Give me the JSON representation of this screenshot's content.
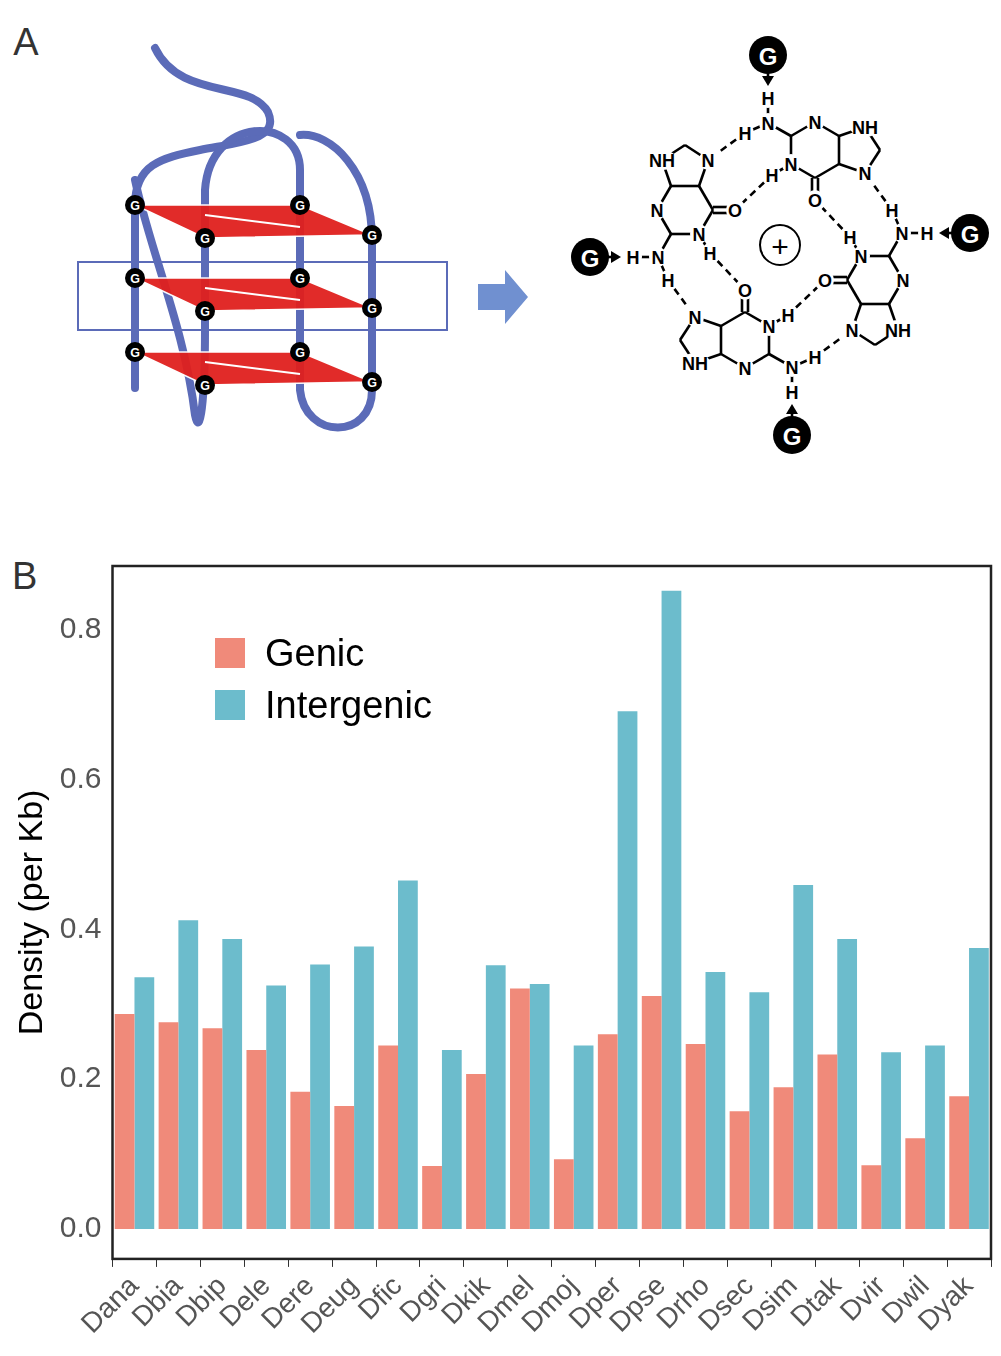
{
  "panel_a": {
    "label": "A",
    "strand_base": "G",
    "tetrad": {
      "base": "G",
      "cation": "+",
      "atoms": {
        "n3": "N",
        "n1": "N",
        "n1_h": "H",
        "amino_n": "N",
        "amino_h1": "H",
        "amino_h2": "H",
        "o6": "O",
        "n7": "N",
        "n9": "NH"
      }
    }
  },
  "chart_data": {
    "panel_label": "B",
    "type": "bar",
    "y_label": "Density (per Kb)",
    "categories": [
      "Dana",
      "Dbia",
      "Dbip",
      "Dele",
      "Dere",
      "Deug",
      "Dfic",
      "Dgri",
      "Dkik",
      "Dmel",
      "Dmoj",
      "Dper",
      "Dpse",
      "Drho",
      "Dsec",
      "Dsim",
      "Dtak",
      "Dvir",
      "Dwil",
      "Dyak"
    ],
    "series": [
      {
        "name": "Genic",
        "color": "#f08a7a",
        "values": [
          0.287,
          0.276,
          0.268,
          0.239,
          0.183,
          0.164,
          0.245,
          0.084,
          0.207,
          0.321,
          0.093,
          0.26,
          0.311,
          0.247,
          0.157,
          0.189,
          0.233,
          0.085,
          0.121,
          0.177
        ]
      },
      {
        "name": "Intergenic",
        "color": "#6cbccc",
        "values": [
          0.336,
          0.412,
          0.387,
          0.325,
          0.353,
          0.377,
          0.465,
          0.239,
          0.352,
          0.327,
          0.245,
          0.691,
          0.852,
          0.343,
          0.316,
          0.459,
          0.387,
          0.236,
          0.245,
          0.375
        ]
      }
    ],
    "ylim": [
      -0.04,
      0.885
    ],
    "yticks": [
      {
        "value": 0,
        "label": "0.0"
      },
      {
        "value": 0.2,
        "label": "0.2"
      },
      {
        "value": 0.4,
        "label": "0.4"
      },
      {
        "value": 0.6,
        "label": "0.6"
      },
      {
        "value": 0.8,
        "label": "0.8"
      }
    ],
    "grid": false,
    "legend": "upper left"
  }
}
